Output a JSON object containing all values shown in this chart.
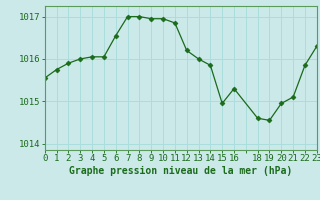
{
  "x": [
    0,
    1,
    2,
    3,
    4,
    5,
    6,
    7,
    8,
    9,
    10,
    11,
    12,
    13,
    14,
    15,
    16,
    18,
    19,
    20,
    21,
    22,
    23
  ],
  "y": [
    1015.55,
    1015.75,
    1015.9,
    1016.0,
    1016.05,
    1016.05,
    1016.55,
    1017.0,
    1017.0,
    1016.95,
    1016.95,
    1016.85,
    1016.2,
    1016.0,
    1015.85,
    1014.95,
    1015.3,
    1014.6,
    1014.55,
    1014.95,
    1015.1,
    1015.85,
    1016.3
  ],
  "line_color": "#1a6b1a",
  "marker": "D",
  "marker_size": 2.5,
  "bg_color": "#cbe9e9",
  "plot_bg_color": "#cbe9e9",
  "grid_color": "#aadddd",
  "ylabel_ticks": [
    1014,
    1015,
    1016,
    1017
  ],
  "xlabel_label": "Graphe pression niveau de la mer (hPa)",
  "xtick_positions": [
    0,
    1,
    2,
    3,
    4,
    5,
    6,
    7,
    8,
    9,
    10,
    11,
    12,
    13,
    14,
    15,
    16,
    17,
    18,
    19,
    20,
    21,
    22,
    23
  ],
  "xtick_labels": [
    "0",
    "1",
    "2",
    "3",
    "4",
    "5",
    "6",
    "7",
    "8",
    "9",
    "10",
    "11",
    "12",
    "13",
    "14",
    "15",
    "16",
    "",
    "18",
    "19",
    "20",
    "21",
    "22",
    "23"
  ],
  "xlim": [
    0,
    23
  ],
  "ylim": [
    1013.85,
    1017.25
  ],
  "label_color": "#1a6b1a",
  "xlabel_fontsize": 7,
  "tick_fontsize": 6.5,
  "spine_color": "#5a9a5a"
}
